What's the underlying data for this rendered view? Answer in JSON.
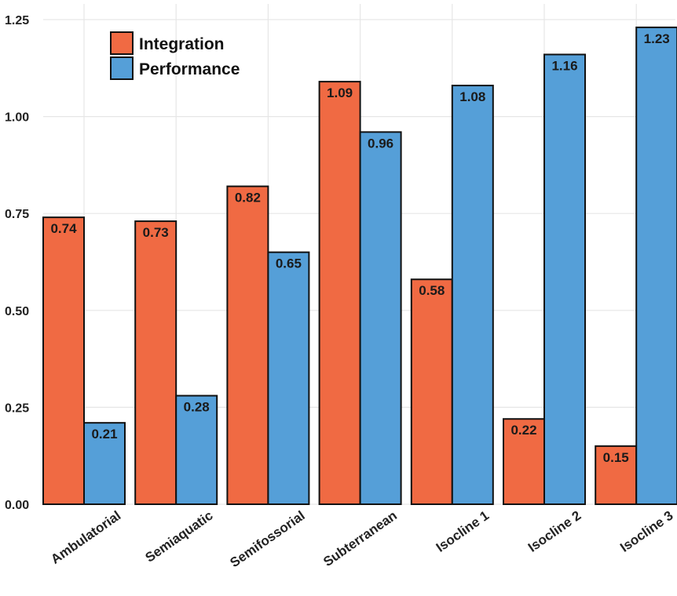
{
  "chart_data": {
    "type": "bar",
    "categories": [
      "Ambulatorial",
      "Semiaquatic",
      "Semifossorial",
      "Subterranean",
      "Isocline 1",
      "Isocline 2",
      "Isocline 3"
    ],
    "series": [
      {
        "name": "Integration",
        "color": "#f06a43",
        "values": [
          0.74,
          0.73,
          0.82,
          1.09,
          0.58,
          0.22,
          0.15
        ]
      },
      {
        "name": "Performance",
        "color": "#559fd8",
        "values": [
          0.21,
          0.28,
          0.65,
          0.96,
          1.08,
          1.16,
          1.23
        ]
      }
    ],
    "value_labels": {
      "Integration": [
        "0.74",
        "0.73",
        "0.82",
        "1.09",
        "0.58",
        "0.22",
        "0.15"
      ],
      "Performance": [
        "0.21",
        "0.28",
        "0.65",
        "0.96",
        "1.08",
        "1.16",
        "1.23"
      ]
    },
    "title": "",
    "xlabel": "",
    "ylabel": "",
    "ylim": [
      0,
      1.25
    ],
    "yticks": [
      0,
      0.25,
      0.5,
      0.75,
      1.0,
      1.25
    ],
    "ytick_labels": [
      "0.00",
      "0.25",
      "0.50",
      "0.75",
      "1.00",
      "1.25"
    ],
    "grid": true,
    "legend_position": "top-left"
  }
}
